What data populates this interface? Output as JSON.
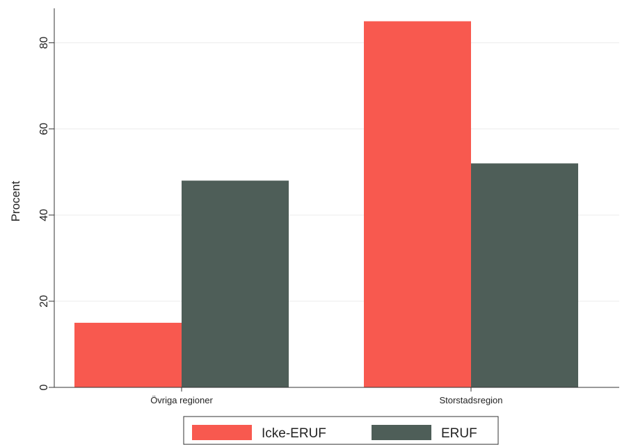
{
  "chart_data": {
    "type": "bar",
    "title": "",
    "xlabel": "",
    "ylabel": "Procent",
    "ylim": [
      0,
      88
    ],
    "yticks": [
      0,
      20,
      40,
      60,
      80
    ],
    "grid": true,
    "legend_position": "bottom",
    "categories": [
      "Övriga regioner",
      "Storstadsregion"
    ],
    "series": [
      {
        "name": "Icke-ERUF",
        "color": "#f8594f",
        "values": [
          15,
          85
        ]
      },
      {
        "name": "ERUF",
        "color": "#4e5e58",
        "values": [
          48,
          52
        ]
      }
    ]
  }
}
